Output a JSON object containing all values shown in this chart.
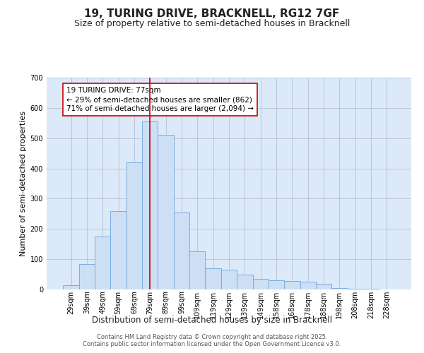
{
  "title1": "19, TURING DRIVE, BRACKNELL, RG12 7GF",
  "title2": "Size of property relative to semi-detached houses in Bracknell",
  "xlabel": "Distribution of semi-detached houses by size in Bracknell",
  "ylabel": "Number of semi-detached properties",
  "categories": [
    "29sqm",
    "39sqm",
    "49sqm",
    "59sqm",
    "69sqm",
    "79sqm",
    "89sqm",
    "99sqm",
    "109sqm",
    "119sqm",
    "129sqm",
    "139sqm",
    "149sqm",
    "158sqm",
    "168sqm",
    "178sqm",
    "188sqm",
    "198sqm",
    "208sqm",
    "218sqm",
    "228sqm"
  ],
  "bar_heights": [
    15,
    85,
    175,
    260,
    420,
    555,
    510,
    255,
    125,
    70,
    65,
    50,
    35,
    30,
    27,
    25,
    18,
    5,
    2,
    2,
    0
  ],
  "bar_color": "#ccdff5",
  "bar_edge_color": "#7aade0",
  "vline_x_index": 5,
  "vline_color": "#cc0000",
  "annotation_text": "19 TURING DRIVE: 77sqm\n← 29% of semi-detached houses are smaller (862)\n71% of semi-detached houses are larger (2,094) →",
  "annotation_box_edgecolor": "#cc0000",
  "background_color": "#dce9f8",
  "ylim": [
    0,
    700
  ],
  "yticks": [
    0,
    100,
    200,
    300,
    400,
    500,
    600,
    700
  ],
  "footer_text": "Contains HM Land Registry data © Crown copyright and database right 2025.\nContains public sector information licensed under the Open Government Licence v3.0.",
  "title1_fontsize": 11,
  "title2_fontsize": 9,
  "xlabel_fontsize": 8.5,
  "ylabel_fontsize": 8,
  "tick_fontsize": 7,
  "annotation_fontsize": 7.5,
  "footer_fontsize": 6
}
